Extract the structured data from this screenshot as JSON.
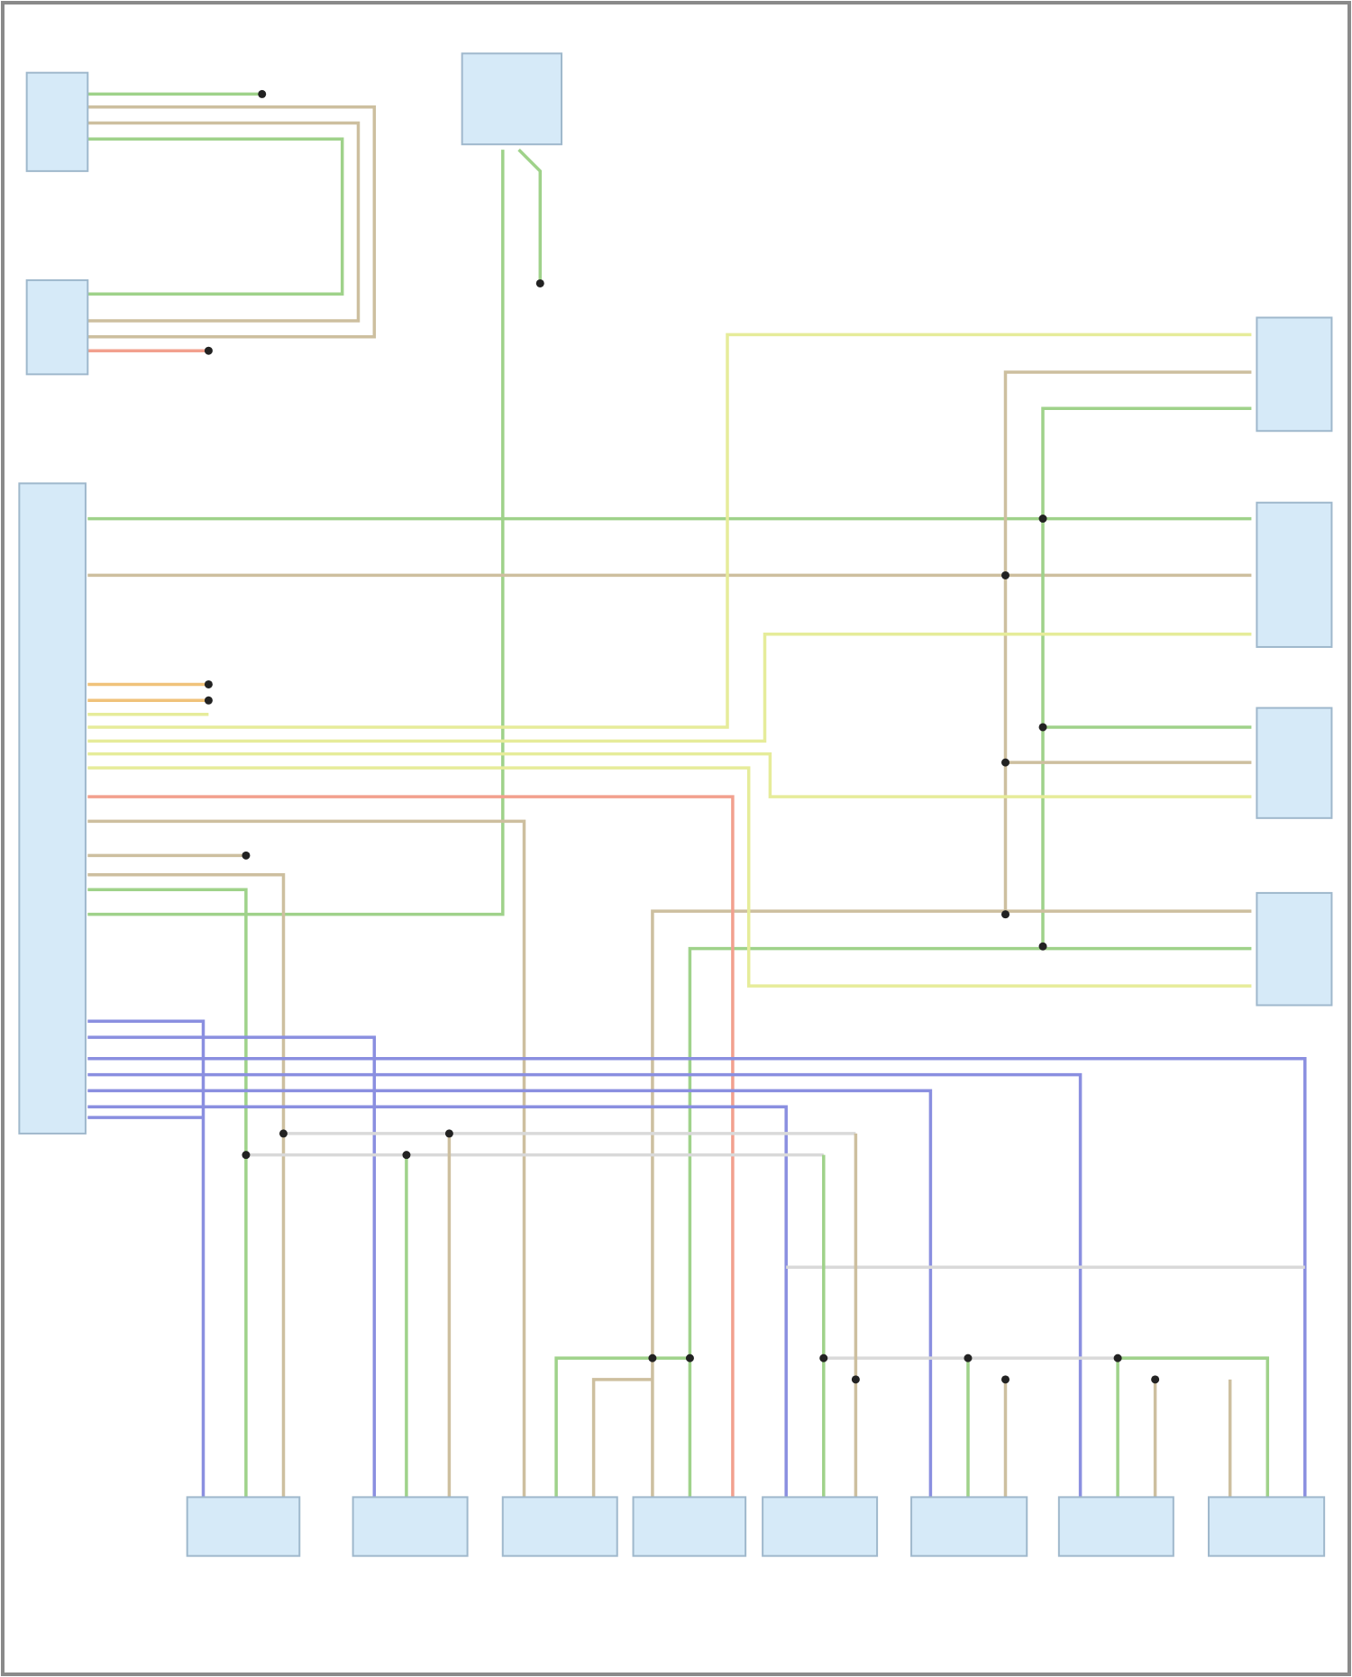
{
  "diagram": {
    "colors": {
      "frame": "#8a8a8a",
      "component_fill": "#d6eaf8",
      "component_stroke": "#9fb8cc",
      "splice": "#222222",
      "wire_green": "#9fd28a",
      "wire_tan": "#cdbf9f",
      "wire_yellow": "#e6ec9a",
      "wire_red": "#f2a08e",
      "wire_orange": "#f0c27a",
      "wire_blue": "#8a8fe0",
      "wire_gray": "#d9d9d9"
    },
    "components": [
      {
        "id": "module-top-left"
      },
      {
        "id": "module-left-2"
      },
      {
        "id": "module-top-center"
      },
      {
        "id": "main-control-module"
      },
      {
        "id": "right-sensor-1"
      },
      {
        "id": "right-sensor-2"
      },
      {
        "id": "right-sensor-3"
      },
      {
        "id": "right-sensor-4"
      },
      {
        "id": "bottom-sensor-1"
      },
      {
        "id": "bottom-sensor-2"
      },
      {
        "id": "bottom-sensor-3"
      },
      {
        "id": "bottom-sensor-4"
      },
      {
        "id": "bottom-sensor-5"
      },
      {
        "id": "bottom-sensor-6"
      },
      {
        "id": "bottom-sensor-7"
      },
      {
        "id": "bottom-sensor-8"
      }
    ]
  }
}
